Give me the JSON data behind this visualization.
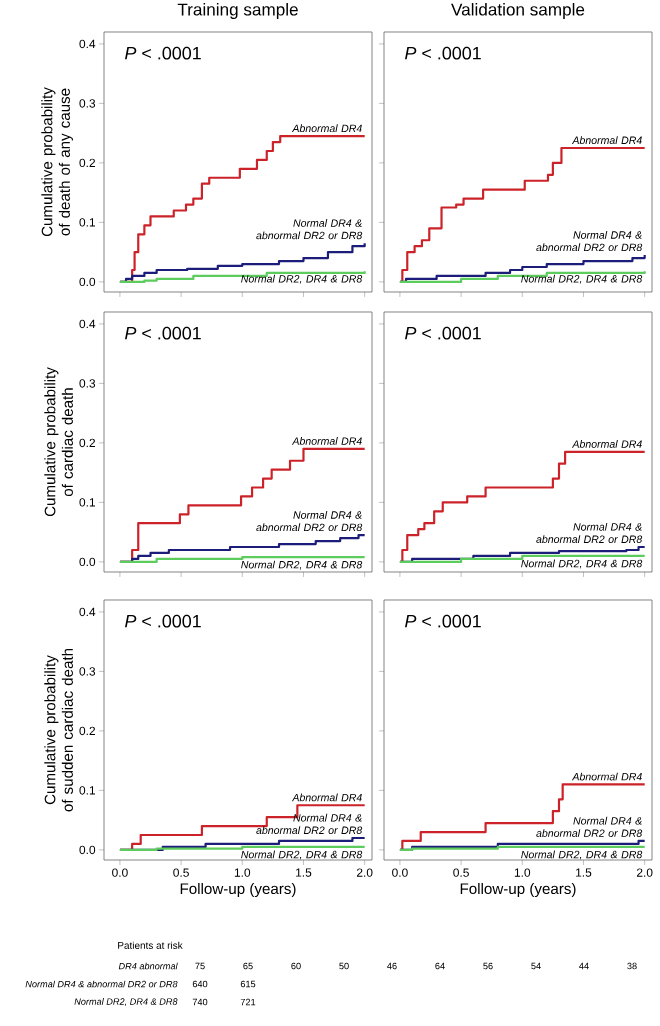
{
  "chart_data": [
    {
      "type": "step",
      "title": "Training sample",
      "ylabel": "Cumulative probability of death of any cause",
      "xlim": [
        -0.13,
        2.06
      ],
      "ylim": [
        -0.017,
        0.42
      ],
      "xticks": [
        0,
        0.5,
        1,
        1.5,
        2
      ],
      "yticks": [
        {
          "value": 0,
          "label": "0.0"
        },
        {
          "value": 0.1,
          "label": "0.1"
        },
        {
          "value": 0.2,
          "label": "0.2"
        },
        {
          "value": 0.3,
          "label": "0.3"
        },
        {
          "value": 0.4,
          "label": "0.4"
        }
      ],
      "tick_labels": "y",
      "annotations": [
        "*P* < .0001"
      ],
      "series": [
        {
          "name": "Abnormal DR4",
          "color": "#cc2229",
          "x": [
            0,
            0.1,
            0.12,
            0.15,
            0.2,
            0.25,
            0.44,
            0.54,
            0.6,
            0.67,
            0.73,
            0.98,
            1.12,
            1.2,
            1.25,
            1.31,
            2.0
          ],
          "values": [
            0,
            0.02,
            0.05,
            0.08,
            0.095,
            0.11,
            0.12,
            0.13,
            0.14,
            0.165,
            0.175,
            0.19,
            0.205,
            0.22,
            0.235,
            0.245,
            0.245
          ]
        },
        {
          "name": "Normal DR4 & abnormal DR2 or DR8",
          "color": "#1c1c7a",
          "x": [
            0,
            0.05,
            0.1,
            0.2,
            0.3,
            0.55,
            0.8,
            1.0,
            1.3,
            1.5,
            1.7,
            1.9,
            2.0
          ],
          "values": [
            0,
            0.005,
            0.01,
            0.015,
            0.02,
            0.022,
            0.027,
            0.03,
            0.035,
            0.04,
            0.05,
            0.06,
            0.065
          ]
        },
        {
          "name": "Normal DR2, DR4 & DR8",
          "color": "#5ccc5c",
          "x": [
            0,
            0.2,
            0.3,
            0.6,
            1.2,
            2.0
          ],
          "values": [
            0,
            0.002,
            0.005,
            0.01,
            0.015,
            0.018
          ]
        }
      ]
    },
    {
      "type": "step",
      "title": "Validation sample",
      "xlim": [
        -0.13,
        2.06
      ],
      "ylim": [
        -0.017,
        0.42
      ],
      "xticks": [
        0,
        0.5,
        1,
        1.5,
        2
      ],
      "yticks": [
        0,
        0.1,
        0.2,
        0.3,
        0.4
      ],
      "tick_labels": false,
      "annotations": [
        "*P* < .0001"
      ],
      "series": [
        {
          "name": "Abnormal DR4",
          "color": "#cc2229",
          "x": [
            0,
            0.02,
            0.06,
            0.12,
            0.18,
            0.24,
            0.34,
            0.46,
            0.52,
            0.68,
            1.02,
            1.21,
            1.25,
            1.32,
            2.0
          ],
          "values": [
            0,
            0.02,
            0.05,
            0.06,
            0.07,
            0.09,
            0.125,
            0.13,
            0.14,
            0.155,
            0.17,
            0.18,
            0.2,
            0.225,
            0.225
          ]
        },
        {
          "name": "Normal DR4 & abnormal DR2 or DR8",
          "color": "#1c1c7a",
          "x": [
            0,
            0.05,
            0.3,
            0.7,
            0.9,
            1.0,
            1.2,
            1.5,
            1.9,
            2.0
          ],
          "values": [
            0,
            0.005,
            0.01,
            0.015,
            0.02,
            0.025,
            0.03,
            0.035,
            0.04,
            0.045
          ]
        },
        {
          "name": "Normal DR2, DR4 & DR8",
          "color": "#5ccc5c",
          "x": [
            0,
            0.5,
            0.8,
            1.2,
            2.0
          ],
          "values": [
            0,
            0.005,
            0.01,
            0.015,
            0.018
          ]
        }
      ]
    },
    {
      "type": "step",
      "ylabel": "Cumulative probability of cardiac death",
      "xlim": [
        -0.13,
        2.06
      ],
      "ylim": [
        -0.017,
        0.42
      ],
      "xticks": [
        0,
        0.5,
        1,
        1.5,
        2
      ],
      "yticks": [
        {
          "value": 0,
          "label": "0.0"
        },
        {
          "value": 0.1,
          "label": "0.1"
        },
        {
          "value": 0.2,
          "label": "0.2"
        },
        {
          "value": 0.3,
          "label": "0.3"
        },
        {
          "value": 0.4,
          "label": "0.4"
        }
      ],
      "tick_labels": "y",
      "annotations": [
        "*P* < .0001"
      ],
      "series": [
        {
          "name": "Abnormal DR4",
          "color": "#cc2229",
          "x": [
            0,
            0.1,
            0.15,
            0.49,
            0.56,
            0.99,
            1.08,
            1.17,
            1.24,
            1.39,
            1.5,
            2.0
          ],
          "values": [
            0,
            0.02,
            0.065,
            0.08,
            0.095,
            0.11,
            0.125,
            0.14,
            0.155,
            0.17,
            0.19,
            0.19
          ]
        },
        {
          "name": "Normal DR4 & abnormal DR2 or DR8",
          "color": "#1c1c7a",
          "x": [
            0,
            0.1,
            0.15,
            0.25,
            0.4,
            0.9,
            1.3,
            1.6,
            1.8,
            1.95,
            2.0
          ],
          "values": [
            0,
            0.005,
            0.01,
            0.015,
            0.02,
            0.025,
            0.03,
            0.035,
            0.04,
            0.045,
            0.045
          ]
        },
        {
          "name": "Normal DR2, DR4 & DR8",
          "color": "#5ccc5c",
          "x": [
            0,
            0.3,
            1.0,
            2.0
          ],
          "values": [
            0,
            0.005,
            0.008,
            0.008
          ]
        }
      ]
    },
    {
      "type": "step",
      "xlim": [
        -0.13,
        2.06
      ],
      "ylim": [
        -0.017,
        0.42
      ],
      "xticks": [
        0,
        0.5,
        1,
        1.5,
        2
      ],
      "yticks": [
        0,
        0.1,
        0.2,
        0.3,
        0.4
      ],
      "tick_labels": false,
      "annotations": [
        "*P* < .0001"
      ],
      "series": [
        {
          "name": "Abnormal DR4",
          "color": "#cc2229",
          "x": [
            0,
            0.02,
            0.06,
            0.15,
            0.2,
            0.28,
            0.35,
            0.55,
            0.7,
            1.25,
            1.3,
            1.35,
            2.0
          ],
          "values": [
            0,
            0.02,
            0.045,
            0.055,
            0.065,
            0.085,
            0.1,
            0.11,
            0.125,
            0.14,
            0.165,
            0.185,
            0.185
          ]
        },
        {
          "name": "Normal DR4 & abnormal DR2 or DR8",
          "color": "#1c1c7a",
          "x": [
            0,
            0.1,
            0.6,
            0.9,
            1.3,
            1.85,
            1.95,
            2.0
          ],
          "values": [
            0,
            0.005,
            0.01,
            0.015,
            0.018,
            0.02,
            0.025,
            0.025
          ]
        },
        {
          "name": "Normal DR2, DR4 & DR8",
          "color": "#5ccc5c",
          "x": [
            0,
            0.5,
            1.0,
            2.0
          ],
          "values": [
            0,
            0.005,
            0.01,
            0.01
          ]
        }
      ]
    },
    {
      "type": "step",
      "ylabel": "Cumulative probability of sudden cardiac death",
      "xlabel": "Follow-up (years)",
      "xlim": [
        -0.13,
        2.06
      ],
      "ylim": [
        -0.017,
        0.42
      ],
      "xticks": [
        {
          "value": 0,
          "label": "0.0"
        },
        {
          "value": 0.5,
          "label": "0.5"
        },
        {
          "value": 1,
          "label": "1.0"
        },
        {
          "value": 1.5,
          "label": "1.5"
        },
        {
          "value": 2,
          "label": "2.0"
        }
      ],
      "yticks": [
        {
          "value": 0,
          "label": "0.0"
        },
        {
          "value": 0.1,
          "label": "0.1"
        },
        {
          "value": 0.2,
          "label": "0.2"
        },
        {
          "value": 0.3,
          "label": "0.3"
        },
        {
          "value": 0.4,
          "label": "0.4"
        }
      ],
      "annotations": [
        "*P* < .0001"
      ],
      "series": [
        {
          "name": "Abnormal DR4",
          "color": "#cc2229",
          "x": [
            0,
            0.1,
            0.17,
            0.67,
            1.2,
            1.45,
            2.0
          ],
          "values": [
            0,
            0.01,
            0.025,
            0.04,
            0.055,
            0.075,
            0.075
          ]
        },
        {
          "name": "Normal DR4 & abnormal DR2 or DR8",
          "color": "#1c1c7a",
          "x": [
            0,
            0.35,
            0.7,
            1.3,
            1.9,
            2.0
          ],
          "values": [
            0,
            0.005,
            0.01,
            0.015,
            0.02,
            0.02
          ]
        },
        {
          "name": "Normal DR2, DR4 & DR8",
          "color": "#5ccc5c",
          "x": [
            0,
            0.3,
            1.0,
            2.0
          ],
          "values": [
            0,
            0.002,
            0.005,
            0.005
          ]
        }
      ]
    },
    {
      "type": "step",
      "xlabel": "Follow-up (years)",
      "xlim": [
        -0.13,
        2.06
      ],
      "ylim": [
        -0.017,
        0.42
      ],
      "xticks": [
        {
          "value": 0,
          "label": "0.0"
        },
        {
          "value": 0.5,
          "label": "0.5"
        },
        {
          "value": 1,
          "label": "1.0"
        },
        {
          "value": 1.5,
          "label": "1.5"
        },
        {
          "value": 2,
          "label": "2.0"
        }
      ],
      "yticks": [
        0,
        0.1,
        0.2,
        0.3,
        0.4
      ],
      "tick_labels": "x",
      "annotations": [
        "*P* < .0001"
      ],
      "series": [
        {
          "name": "Abnormal DR4",
          "color": "#cc2229",
          "x": [
            0,
            0.02,
            0.17,
            0.7,
            1.25,
            1.3,
            1.33,
            2.0
          ],
          "values": [
            0,
            0.015,
            0.03,
            0.045,
            0.065,
            0.085,
            0.11,
            0.11
          ]
        },
        {
          "name": "Normal DR4 & abnormal DR2 or DR8",
          "color": "#1c1c7a",
          "x": [
            0,
            0.1,
            0.8,
            1.95,
            2.0
          ],
          "values": [
            0,
            0.005,
            0.01,
            0.015,
            0.015
          ]
        },
        {
          "name": "Normal DR2, DR4 & DR8",
          "color": "#5ccc5c",
          "x": [
            0,
            0.1,
            0.8,
            2.0
          ],
          "values": [
            0,
            0.002,
            0.005,
            0.005
          ]
        }
      ]
    },
    {
      "type": "other",
      "title": "Patients at risk",
      "data_labels": true,
      "categories": [
        "DR4 abnormal",
        "Normal DR4 & abnormal DR2 or DR8",
        "Normal DR2, DR4 & DR8"
      ],
      "series": [
        {
          "values": [
            75,
            640,
            740
          ]
        },
        {
          "values": [
            65,
            615,
            721
          ]
        },
        {
          "values": [
            60,
            null,
            null
          ]
        },
        {
          "values": [
            50,
            null,
            null
          ]
        },
        {
          "values": [
            46,
            null,
            null
          ]
        },
        {
          "values": [
            64,
            null,
            null
          ]
        },
        {
          "values": [
            56,
            null,
            null
          ]
        },
        {
          "values": [
            54,
            null,
            null
          ]
        },
        {
          "values": [
            44,
            null,
            null
          ]
        },
        {
          "values": [
            38,
            null,
            null
          ]
        }
      ]
    }
  ]
}
